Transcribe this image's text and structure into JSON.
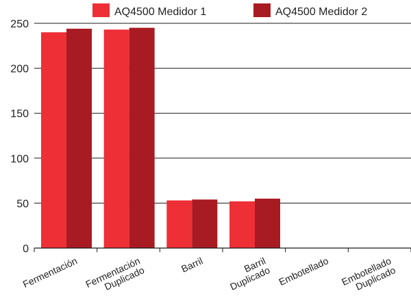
{
  "chart_data": {
    "type": "bar",
    "categories": [
      [
        "Fermentación"
      ],
      [
        "Fermentación",
        "Duplicado"
      ],
      [
        "Barril"
      ],
      [
        "Barril",
        "Duplicado"
      ],
      [
        "Embotellado"
      ],
      [
        "Embotellado",
        "Duplicado"
      ]
    ],
    "series": [
      {
        "name": "AQ4500 Medidor 1",
        "color": "#ee2f36",
        "values": [
          240,
          243,
          53,
          52,
          0,
          0
        ]
      },
      {
        "name": "AQ4500 Medidor 2",
        "color": "#a91b22",
        "values": [
          244,
          245,
          54,
          55,
          0,
          0
        ]
      }
    ],
    "ylim": [
      0,
      250
    ],
    "yticks": [
      0,
      50,
      100,
      150,
      200,
      250
    ],
    "grid": true,
    "legend": "top"
  }
}
